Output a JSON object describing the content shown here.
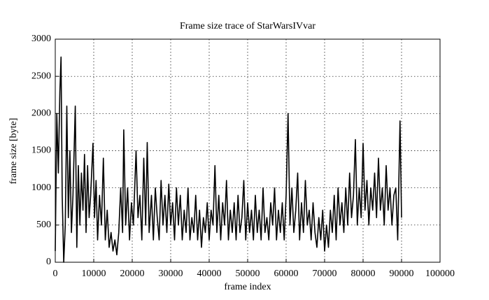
{
  "chart_data": {
    "type": "line",
    "title": "Frame size trace of StarWarsIVvar",
    "x_label": "frame index",
    "y_label": "frame size [byte]",
    "grid": true,
    "xlim": [
      0,
      100000
    ],
    "xticks": [
      0,
      10000,
      20000,
      30000,
      40000,
      50000,
      60000,
      70000,
      80000,
      90000,
      100000
    ],
    "ylim": [
      0,
      3000
    ],
    "yticks": [
      0,
      500,
      1000,
      1500,
      2000,
      2500,
      3000
    ],
    "series": [
      {
        "color": "#000000",
        "x": [
          0,
          400,
          800,
          1200,
          1500,
          1800,
          2200,
          2600,
          3000,
          3400,
          3800,
          4200,
          4600,
          5200,
          5600,
          6000,
          6400,
          6800,
          7200,
          7600,
          8000,
          8400,
          8800,
          9200,
          9800,
          10200,
          10600,
          11000,
          11500,
          12000,
          12500,
          13000,
          13500,
          14000,
          14500,
          15000,
          15500,
          16000,
          16500,
          17000,
          17500,
          17800,
          18300,
          18800,
          19300,
          19800,
          20300,
          21000,
          21500,
          22000,
          22500,
          23000,
          23500,
          23900,
          24400,
          25000,
          25500,
          26000,
          26500,
          27000,
          27500,
          28000,
          28500,
          29000,
          29500,
          30000,
          30500,
          31000,
          31500,
          32000,
          32500,
          33000,
          33500,
          34000,
          34500,
          35000,
          35500,
          36000,
          36500,
          37000,
          37500,
          38000,
          38500,
          39000,
          39500,
          40000,
          40500,
          41000,
          41500,
          42000,
          42500,
          43000,
          43500,
          44000,
          44500,
          45000,
          45500,
          46000,
          46500,
          47000,
          47500,
          48000,
          48500,
          49000,
          49500,
          50000,
          50500,
          51000,
          51500,
          52000,
          52500,
          53000,
          53500,
          54000,
          54500,
          55000,
          55500,
          56000,
          56500,
          57000,
          57500,
          58000,
          58500,
          59000,
          59500,
          60000,
          60500,
          61000,
          61500,
          62000,
          62500,
          63000,
          63500,
          64000,
          64500,
          65000,
          65500,
          66000,
          66500,
          67000,
          67500,
          68000,
          68500,
          69000,
          69500,
          70000,
          70500,
          71000,
          71500,
          72000,
          72500,
          73000,
          73500,
          74000,
          74500,
          75000,
          75500,
          76000,
          76500,
          77000,
          77500,
          78000,
          78500,
          79000,
          79500,
          80000,
          80500,
          81000,
          81500,
          82000,
          82500,
          83000,
          83500,
          84000,
          84500,
          85000,
          85500,
          86000,
          86500,
          87000,
          87500,
          88000,
          88500,
          89000,
          89600,
          90000
        ],
        "values": [
          150,
          2000,
          1200,
          2300,
          2760,
          900,
          0,
          500,
          2100,
          600,
          1500,
          400,
          900,
          2100,
          200,
          1300,
          500,
          1200,
          700,
          1450,
          400,
          1300,
          600,
          900,
          1600,
          600,
          1100,
          300,
          900,
          500,
          1400,
          300,
          700,
          200,
          400,
          150,
          300,
          100,
          400,
          1000,
          400,
          1780,
          500,
          1000,
          300,
          800,
          500,
          1500,
          600,
          900,
          300,
          1400,
          500,
          1610,
          400,
          900,
          300,
          1000,
          600,
          300,
          1100,
          500,
          900,
          400,
          1050,
          500,
          800,
          300,
          1000,
          500,
          900,
          300,
          700,
          400,
          1000,
          300,
          600,
          400,
          900,
          300,
          700,
          200,
          600,
          400,
          800,
          300,
          700,
          500,
          1300,
          400,
          900,
          300,
          800,
          500,
          1100,
          300,
          700,
          400,
          800,
          300,
          900,
          400,
          600,
          1100,
          300,
          800,
          400,
          700,
          300,
          900,
          400,
          700,
          300,
          1000,
          400,
          600,
          300,
          800,
          500,
          1000,
          300,
          700,
          400,
          800,
          300,
          900,
          2000,
          500,
          1000,
          400,
          700,
          1200,
          300,
          800,
          400,
          1100,
          500,
          700,
          300,
          800,
          400,
          200,
          600,
          300,
          700,
          150,
          500,
          200,
          700,
          400,
          900,
          300,
          1000,
          500,
          800,
          400,
          1000,
          500,
          1200,
          600,
          900,
          1650,
          500,
          1000,
          600,
          1600,
          700,
          1100,
          500,
          1000,
          700,
          1200,
          600,
          1400,
          700,
          1000,
          500,
          1300,
          700,
          1000,
          500,
          900,
          1000,
          300,
          1900,
          600
        ]
      }
    ]
  }
}
